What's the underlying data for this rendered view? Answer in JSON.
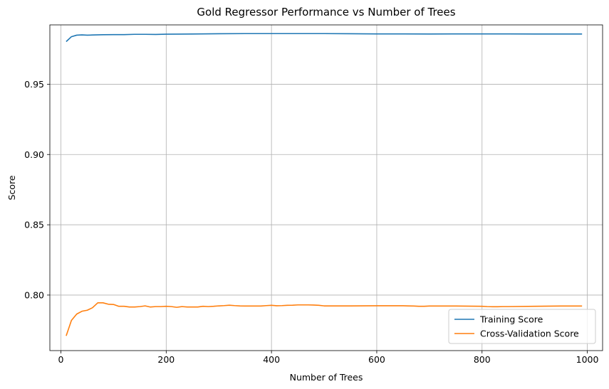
{
  "chart_data": {
    "type": "line",
    "title": "Gold Regressor Performance vs Number of Trees",
    "xlabel": "Number of Trees",
    "ylabel": "Score",
    "xlim": [
      -21,
      1029
    ],
    "ylim": [
      0.7605,
      0.9922
    ],
    "xticks": [
      0,
      200,
      400,
      600,
      800,
      1000
    ],
    "xtick_labels": [
      "0",
      "200",
      "400",
      "600",
      "800",
      "1000"
    ],
    "yticks": [
      0.8,
      0.85,
      0.9,
      0.95
    ],
    "ytick_labels": [
      "0.80",
      "0.85",
      "0.90",
      "0.95"
    ],
    "grid": true,
    "legend_position": "lower-right",
    "series": [
      {
        "name": "Training Score",
        "color": "#1f77b4",
        "x": [
          10,
          20,
          30,
          40,
          50,
          60,
          80,
          100,
          120,
          140,
          160,
          180,
          200,
          250,
          300,
          350,
          400,
          450,
          500,
          550,
          600,
          650,
          700,
          750,
          800,
          850,
          900,
          950,
          990
        ],
        "y": [
          0.9803,
          0.9838,
          0.9849,
          0.9851,
          0.9849,
          0.985,
          0.9852,
          0.9853,
          0.9853,
          0.9855,
          0.9855,
          0.9854,
          0.9856,
          0.9857,
          0.9859,
          0.986,
          0.986,
          0.986,
          0.986,
          0.9859,
          0.9858,
          0.9858,
          0.9857,
          0.9858,
          0.9858,
          0.9858,
          0.9857,
          0.9857,
          0.9857
        ]
      },
      {
        "name": "Cross-Validation Score",
        "color": "#ff7f0e",
        "x": [
          10,
          20,
          30,
          40,
          50,
          60,
          70,
          80,
          90,
          100,
          110,
          120,
          130,
          140,
          150,
          160,
          170,
          180,
          190,
          200,
          210,
          220,
          230,
          240,
          250,
          260,
          270,
          280,
          290,
          300,
          310,
          320,
          330,
          340,
          350,
          360,
          370,
          380,
          390,
          400,
          410,
          420,
          430,
          440,
          450,
          460,
          470,
          480,
          490,
          500,
          550,
          600,
          650,
          660,
          670,
          680,
          690,
          700,
          750,
          800,
          810,
          820,
          830,
          840,
          850,
          900,
          950,
          990
        ],
        "y": [
          0.771,
          0.782,
          0.7865,
          0.7885,
          0.7892,
          0.791,
          0.7945,
          0.7945,
          0.7935,
          0.7933,
          0.792,
          0.792,
          0.7915,
          0.7915,
          0.7918,
          0.7923,
          0.7915,
          0.7918,
          0.7918,
          0.792,
          0.7918,
          0.7913,
          0.7918,
          0.7915,
          0.7915,
          0.7915,
          0.792,
          0.7918,
          0.792,
          0.7923,
          0.7925,
          0.7928,
          0.7925,
          0.7923,
          0.7922,
          0.7922,
          0.7922,
          0.7922,
          0.7925,
          0.7927,
          0.7924,
          0.7925,
          0.7927,
          0.7928,
          0.793,
          0.793,
          0.793,
          0.7929,
          0.7927,
          0.7923,
          0.7923,
          0.7924,
          0.7924,
          0.7923,
          0.7922,
          0.792,
          0.792,
          0.7922,
          0.7922,
          0.792,
          0.7918,
          0.7917,
          0.7917,
          0.7918,
          0.7918,
          0.792,
          0.7922,
          0.7922
        ]
      }
    ]
  }
}
